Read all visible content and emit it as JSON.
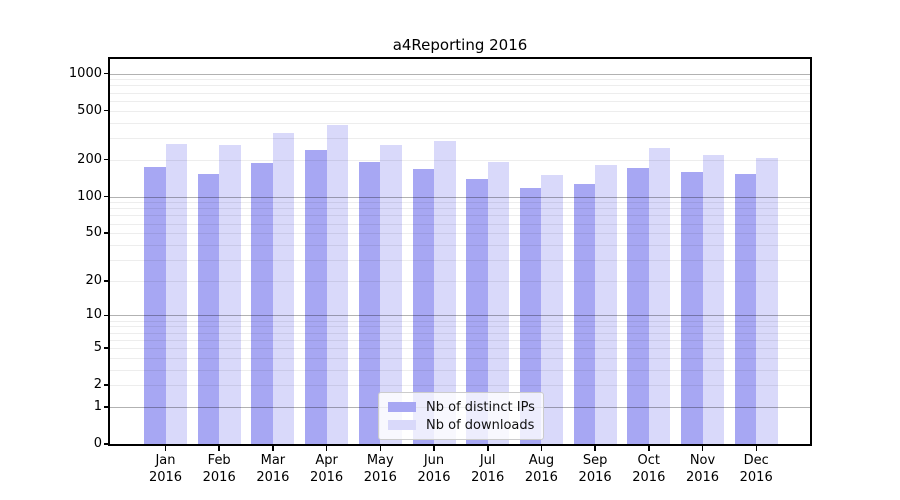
{
  "chart_data": {
    "type": "bar",
    "title": "a4Reporting 2016",
    "categories": [
      "Jan",
      "Feb",
      "Mar",
      "Apr",
      "May",
      "Jun",
      "Jul",
      "Aug",
      "Sep",
      "Oct",
      "Nov",
      "Dec"
    ],
    "category_year": "2016",
    "series": [
      {
        "name": "Nb of distinct IPs",
        "color": "#a7a7f3",
        "values": [
          175,
          154,
          189,
          238,
          191,
          169,
          140,
          118,
          127,
          170,
          159,
          152
        ]
      },
      {
        "name": "Nb of downloads",
        "color": "#d9d9fa",
        "values": [
          268,
          265,
          330,
          381,
          263,
          283,
          190,
          150,
          180,
          250,
          217,
          205
        ]
      }
    ],
    "xlabel": "",
    "ylabel": "",
    "yscale": "log1p",
    "ylim": [
      0,
      1310
    ],
    "yticks": [
      1000,
      500,
      200,
      100,
      50,
      20,
      10,
      5,
      2,
      1,
      0
    ],
    "grid": {
      "minor_values": [
        2,
        3,
        4,
        5,
        6,
        7,
        8,
        9,
        20,
        30,
        40,
        50,
        60,
        70,
        80,
        90,
        200,
        300,
        400,
        500,
        600,
        700,
        800,
        900
      ],
      "major_values": [
        1,
        10,
        100,
        1000
      ],
      "minor_color": "#ececec",
      "major_color": "#b3b3b3"
    },
    "legend_position": "lower center",
    "colors": {
      "background": "#ffffff",
      "spine": "#000000"
    }
  }
}
